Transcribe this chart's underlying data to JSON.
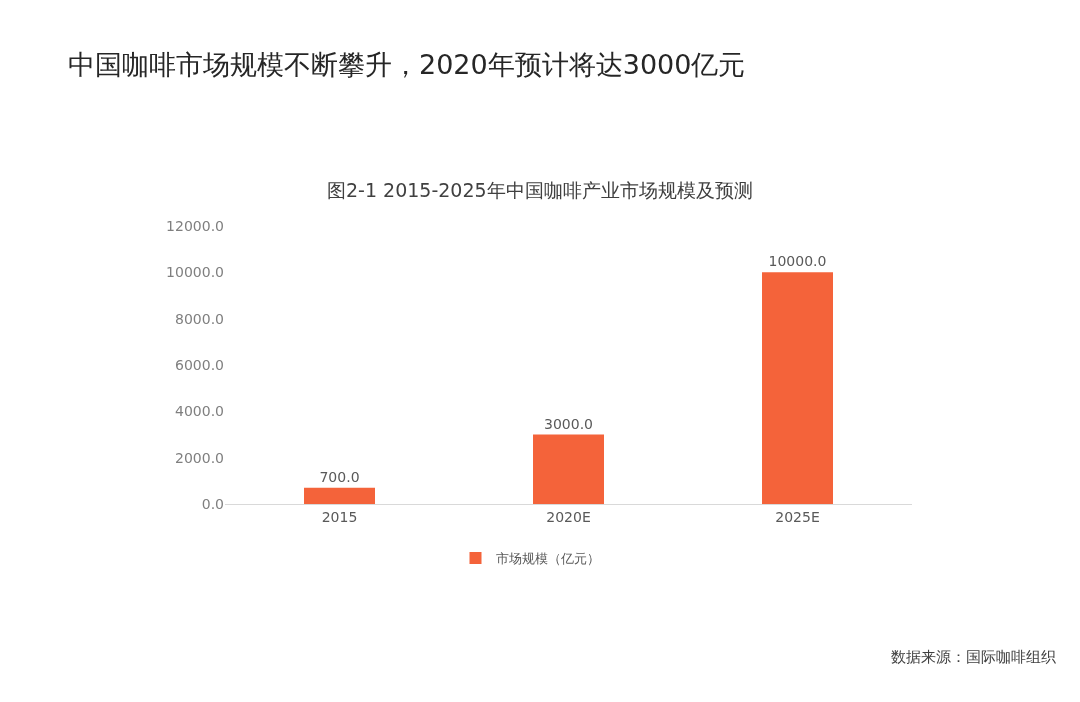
{
  "chart_data": {
    "type": "bar",
    "title": "中国咖啡市场规模不断攀升，2020年预计将达3000亿元",
    "subtitle": "图2-1 2015-2025年中国咖啡产业市场规模及预测",
    "categories": [
      "2015",
      "2020E",
      "2025E"
    ],
    "series": [
      {
        "name": "市场规模（亿元）",
        "color": "#f4633a",
        "values": [
          700,
          3000,
          10000
        ],
        "value_labels": [
          "700.0",
          "3000.0",
          "10000.0"
        ]
      }
    ],
    "ylim": [
      0,
      12000
    ],
    "yticks": [
      {
        "value": 0,
        "label": "0.0"
      },
      {
        "value": 2000,
        "label": "2000.0"
      },
      {
        "value": 4000,
        "label": "4000.0"
      },
      {
        "value": 6000,
        "label": "6000.0"
      },
      {
        "value": 8000,
        "label": "8000.0"
      },
      {
        "value": 10000,
        "label": "10000.0"
      },
      {
        "value": 12000,
        "label": "12000.0"
      }
    ],
    "grid": false,
    "legend": "bottom",
    "annotations": [
      "数据来源：国际咖啡组织"
    ]
  }
}
